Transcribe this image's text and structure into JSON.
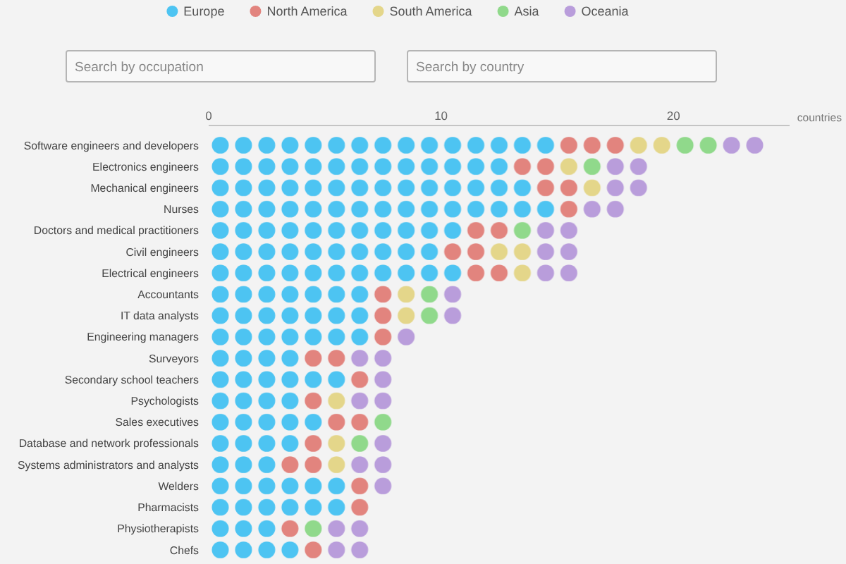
{
  "chart_data": {
    "type": "bar",
    "orientation": "horizontal",
    "stacked": true,
    "categories": [
      "Software engineers and developers",
      "Electronics engineers",
      "Mechanical engineers",
      "Nurses",
      "Doctors and medical practitioners",
      "Civil engineers",
      "Electrical engineers",
      "Accountants",
      "IT data analysts",
      "Engineering managers",
      "Surveyors",
      "Secondary school teachers",
      "Psychologists",
      "Sales executives",
      "Database and network professionals",
      "Systems administrators and analysts",
      "Welders",
      "Pharmacists",
      "Physiotherapists",
      "Chefs"
    ],
    "series": [
      {
        "name": "Europe",
        "color": "#4dc4f2",
        "values": [
          15,
          13,
          14,
          15,
          11,
          10,
          11,
          7,
          7,
          7,
          4,
          6,
          4,
          5,
          4,
          3,
          6,
          6,
          3,
          4
        ]
      },
      {
        "name": "North America",
        "color": "#e2847e",
        "values": [
          3,
          2,
          2,
          1,
          2,
          2,
          2,
          1,
          1,
          1,
          2,
          1,
          1,
          2,
          1,
          2,
          1,
          1,
          1,
          1
        ]
      },
      {
        "name": "South America",
        "color": "#e4d68a",
        "values": [
          2,
          1,
          1,
          0,
          0,
          2,
          1,
          1,
          1,
          0,
          0,
          0,
          1,
          0,
          1,
          1,
          0,
          0,
          0,
          0
        ]
      },
      {
        "name": "Asia",
        "color": "#90d98b",
        "values": [
          2,
          1,
          0,
          0,
          1,
          0,
          0,
          1,
          1,
          0,
          0,
          0,
          0,
          1,
          1,
          0,
          0,
          0,
          1,
          0
        ]
      },
      {
        "name": "Oceania",
        "color": "#b99ddb",
        "values": [
          2,
          2,
          2,
          2,
          2,
          2,
          2,
          1,
          1,
          1,
          2,
          1,
          2,
          0,
          1,
          2,
          1,
          0,
          2,
          2
        ]
      }
    ],
    "xlim": [
      0,
      25
    ],
    "xticks": [
      0,
      10,
      20
    ],
    "xlabel": "countries",
    "legend": "top",
    "annotations": [
      "Search by occupation",
      "Search by country"
    ]
  }
}
